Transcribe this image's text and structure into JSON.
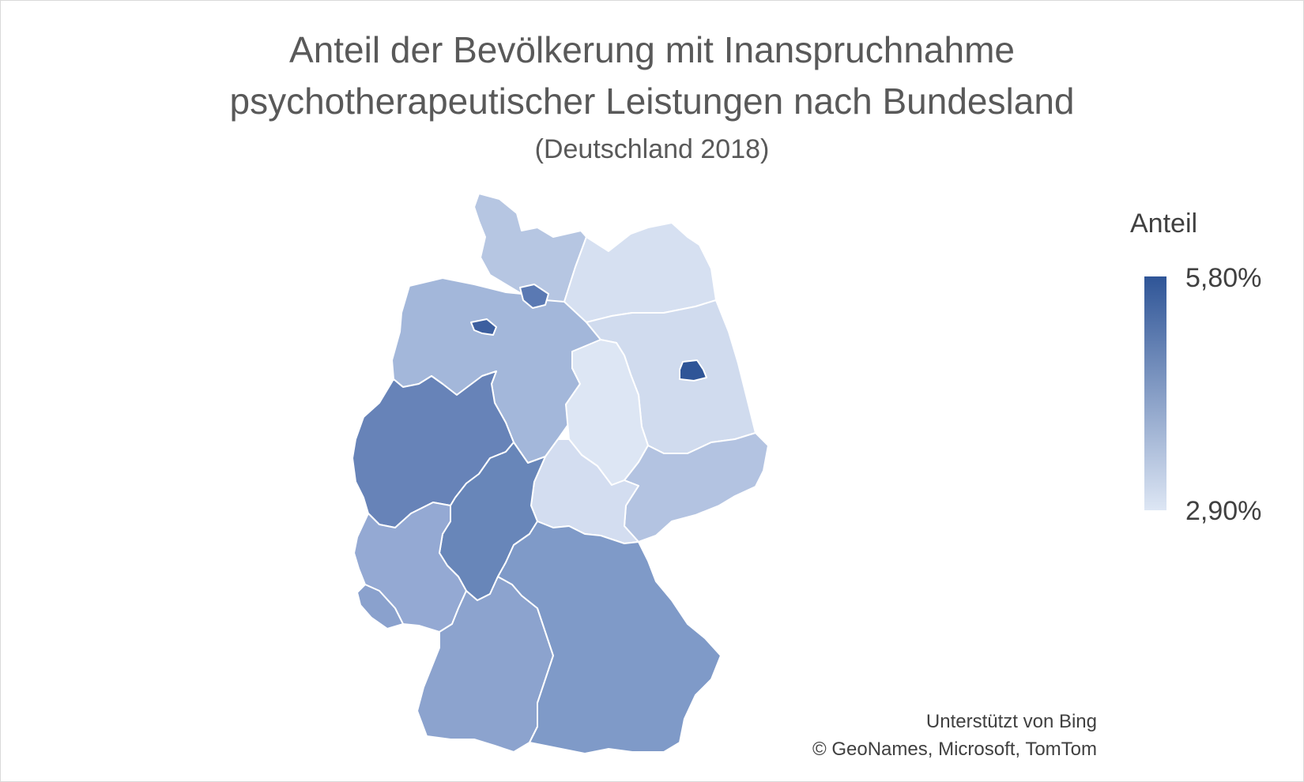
{
  "title_line1": "Anteil der Bevölkerung mit Inanspruchnahme",
  "title_line2": "psychotherapeutischer Leistungen nach Bundesland",
  "subtitle": "(Deutschland 2018)",
  "legend": {
    "title": "Anteil",
    "max_label": "5,80%",
    "min_label": "2,90%",
    "color_max": "#2f5597",
    "color_min": "#dde6f4"
  },
  "credits": {
    "line1": "Unterstützt von Bing",
    "line2": "© GeoNames, Microsoft, TomTom"
  },
  "regions": [
    {
      "id": "schleswig-holstein",
      "color": "#b6c6e2"
    },
    {
      "id": "hamburg",
      "color": "#5a79b3"
    },
    {
      "id": "mecklenburg-vorpommern",
      "color": "#d6e0f1"
    },
    {
      "id": "niedersachsen",
      "color": "#a3b7da"
    },
    {
      "id": "bremen",
      "color": "#3d5f9f"
    },
    {
      "id": "brandenburg",
      "color": "#d0dbee"
    },
    {
      "id": "berlin",
      "color": "#2f5597"
    },
    {
      "id": "sachsen-anhalt",
      "color": "#dde6f4"
    },
    {
      "id": "nordrhein-westfalen",
      "color": "#6783b8"
    },
    {
      "id": "sachsen",
      "color": "#b3c3e1"
    },
    {
      "id": "thueringen",
      "color": "#d3ddf0"
    },
    {
      "id": "hessen",
      "color": "#6886b9"
    },
    {
      "id": "rheinland-pfalz",
      "color": "#94a9d3"
    },
    {
      "id": "saarland",
      "color": "#8aa1cd"
    },
    {
      "id": "baden-wuerttemberg",
      "color": "#8ca3ce"
    },
    {
      "id": "bayern",
      "color": "#7f9ac8"
    }
  ]
}
